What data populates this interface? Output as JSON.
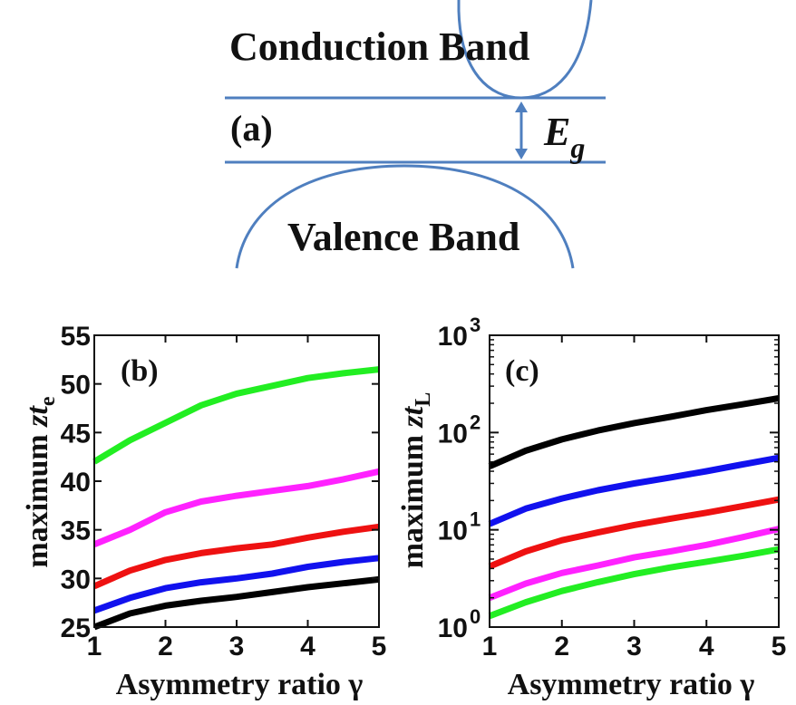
{
  "diagram": {
    "conduction_label": "Conduction Band",
    "valence_label": "Valence Band",
    "panel_label": "(a)",
    "gap_symbol": "E",
    "gap_subscript": "g",
    "line_color": "#4f7fbf"
  },
  "chart_data": [
    {
      "type": "line",
      "panel_label": "(b)",
      "xlabel": "Asymmetry ratio γ",
      "ylabel_main": "maximum ",
      "ylabel_italic": "zt",
      "ylabel_sub": "e",
      "x": [
        1,
        1.5,
        2,
        2.5,
        3,
        3.5,
        4,
        4.5,
        5
      ],
      "xlim": [
        1,
        5
      ],
      "ylim": [
        25,
        55
      ],
      "y_scale": "linear",
      "xticks": [
        "1",
        "2",
        "3",
        "4",
        "5"
      ],
      "yticks": [
        "25",
        "30",
        "35",
        "40",
        "45",
        "50",
        "55"
      ],
      "grid": false,
      "series": [
        {
          "color": "#22ee22",
          "values": [
            42.0,
            44.2,
            46.0,
            47.8,
            49.0,
            49.8,
            50.6,
            51.1,
            51.5
          ]
        },
        {
          "color": "#ff22ff",
          "values": [
            33.5,
            35.0,
            36.8,
            37.9,
            38.5,
            39.0,
            39.5,
            40.2,
            41.0
          ]
        },
        {
          "color": "#ee1111",
          "values": [
            29.2,
            30.8,
            31.9,
            32.6,
            33.1,
            33.5,
            34.2,
            34.8,
            35.3
          ]
        },
        {
          "color": "#1111ee",
          "values": [
            26.7,
            28.0,
            29.0,
            29.6,
            30.0,
            30.5,
            31.2,
            31.7,
            32.1
          ]
        },
        {
          "color": "#000000",
          "values": [
            25.0,
            26.4,
            27.2,
            27.7,
            28.1,
            28.6,
            29.1,
            29.5,
            29.9
          ]
        }
      ]
    },
    {
      "type": "line",
      "panel_label": "(c)",
      "xlabel": "Asymmetry ratio γ",
      "ylabel_main": "maximum ",
      "ylabel_italic": "zt",
      "ylabel_sub": "L",
      "x": [
        1,
        1.5,
        2,
        2.5,
        3,
        3.5,
        4,
        4.5,
        5
      ],
      "xlim": [
        1,
        5
      ],
      "ylim": [
        1,
        1000
      ],
      "y_scale": "log",
      "xticks": [
        "1",
        "2",
        "3",
        "4",
        "5"
      ],
      "yticks": [
        {
          "base": "10",
          "exp": "0",
          "value": 1
        },
        {
          "base": "10",
          "exp": "1",
          "value": 10
        },
        {
          "base": "10",
          "exp": "2",
          "value": 100
        },
        {
          "base": "10",
          "exp": "3",
          "value": 1000
        }
      ],
      "grid": false,
      "series": [
        {
          "color": "#000000",
          "values": [
            45,
            65,
            85,
            105,
            125,
            145,
            170,
            195,
            225
          ]
        },
        {
          "color": "#1111ee",
          "values": [
            11.5,
            16.5,
            21,
            25.5,
            30,
            34.5,
            40,
            47,
            55
          ]
        },
        {
          "color": "#ee1111",
          "values": [
            4.2,
            6.0,
            7.8,
            9.4,
            11.2,
            13.0,
            15.0,
            17.5,
            20.5
          ]
        },
        {
          "color": "#ff22ff",
          "values": [
            2.0,
            2.8,
            3.6,
            4.3,
            5.2,
            6.0,
            7.0,
            8.4,
            10.2
          ]
        },
        {
          "color": "#22ee22",
          "values": [
            1.3,
            1.8,
            2.35,
            2.9,
            3.5,
            4.1,
            4.7,
            5.4,
            6.3
          ]
        }
      ]
    }
  ]
}
